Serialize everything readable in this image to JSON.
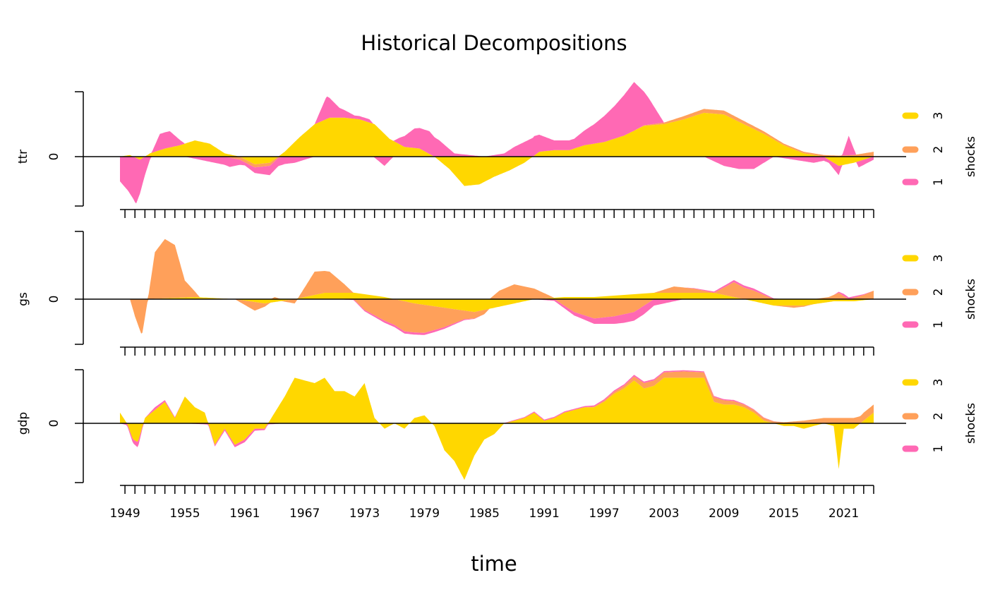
{
  "chart_data": {
    "type": "area",
    "title": "Historical Decompositions",
    "xlabel": "time",
    "x_range": [
      1948.5,
      2024.0
    ],
    "x_ticks": [
      1949,
      1955,
      1961,
      1967,
      1973,
      1979,
      1985,
      1991,
      1997,
      2003,
      2009,
      2015,
      2021
    ],
    "legend": {
      "title": "shocks",
      "placement": "right",
      "entries": [
        {
          "label": "3",
          "color": "#FFD700"
        },
        {
          "label": "2",
          "color": "#FFA05A"
        },
        {
          "label": "1",
          "color": "#FF69B4"
        }
      ]
    },
    "panels": [
      {
        "name": "ttr",
        "ylabel": "ttr",
        "y_tick_label": "0",
        "ylim": [
          -1.6,
          2.0
        ],
        "series": [
          {
            "name": "3",
            "color": "#FFD700",
            "x": [
              1948.5,
              1949.5,
              1950.5,
              1951.5,
              1953,
              1954.5,
              1956,
              1957.5,
              1959,
              1960.5,
              1962,
              1963.5,
              1965,
              1966.5,
              1968,
              1969.5,
              1971,
              1972.5,
              1974,
              1975.5,
              1977,
              1978.5,
              1980,
              1981.5,
              1983,
              1984.5,
              1986,
              1987.5,
              1989,
              1990.5,
              1992,
              1993.5,
              1995,
              1997,
              1999,
              2001,
              2003,
              2005,
              2007,
              2009,
              2011,
              2013,
              2015,
              2017,
              2019,
              2020.5,
              2022,
              2024
            ],
            "y": [
              0.0,
              0.05,
              -0.1,
              0.1,
              0.25,
              0.35,
              0.5,
              0.4,
              0.1,
              0.0,
              -0.25,
              -0.2,
              0.15,
              0.6,
              1.0,
              1.2,
              1.2,
              1.15,
              1.0,
              0.55,
              0.3,
              0.25,
              0.0,
              -0.4,
              -0.95,
              -0.9,
              -0.65,
              -0.45,
              -0.2,
              0.15,
              0.2,
              0.2,
              0.35,
              0.45,
              0.65,
              0.95,
              1.0,
              1.15,
              1.35,
              1.3,
              1.0,
              0.7,
              0.35,
              0.1,
              0.0,
              -0.3,
              -0.2,
              0.0
            ]
          },
          {
            "name": "2",
            "color": "#FFA05A",
            "x": [
              1948.5,
              1953,
              1956,
              1959,
              1960.5,
              1962,
              1963.5,
              1965,
              1970,
              1975,
              1980,
              1985,
              1990,
              1995,
              2000,
              2003,
              2005,
              2007,
              2009,
              2011,
              2013,
              2015,
              2017,
              2019,
              2020.5,
              2022,
              2024
            ],
            "y": [
              0.0,
              0.0,
              0.0,
              0.0,
              -0.1,
              -0.1,
              -0.1,
              0.0,
              0.0,
              0.0,
              0.0,
              0.0,
              0.0,
              0.0,
              0.0,
              0.05,
              0.1,
              0.12,
              0.12,
              0.1,
              0.08,
              0.05,
              0.05,
              0.05,
              0.03,
              0.05,
              0.15
            ]
          },
          {
            "name": "1",
            "color": "#FF69B4",
            "x": [
              1948.5,
              1949.3,
              1950.1,
              1951.5,
              1952.5,
              1953.5,
              1955,
              1958,
              1959.5,
              1961,
              1963.5,
              1966,
              1968,
              1969.2,
              1970.5,
              1972,
              1973.5,
              1975,
              1976.5,
              1978,
              1979.5,
              1980.5,
              1982,
              1985,
              1987,
              1988,
              1990,
              1992,
              1994,
              1996,
              1998,
              2000,
              2001.5,
              2003,
              2005,
              2007,
              2009,
              2010.5,
              2012,
              2014,
              2016,
              2018,
              2019.5,
              2020.5,
              2021.5,
              2022.5,
              2024
            ],
            "y": [
              -0.8,
              -1.1,
              -1.5,
              -0.1,
              0.5,
              0.5,
              0.0,
              -0.2,
              -0.3,
              -0.1,
              -0.3,
              -0.2,
              0.0,
              0.7,
              0.3,
              0.1,
              0.1,
              -0.3,
              0.2,
              0.6,
              0.7,
              0.5,
              0.1,
              0.0,
              0.1,
              0.3,
              0.6,
              0.3,
              0.3,
              0.6,
              1.0,
              1.5,
              0.8,
              0.0,
              0.0,
              0.0,
              -0.3,
              -0.4,
              -0.4,
              0.0,
              -0.1,
              -0.2,
              -0.1,
              -0.3,
              0.6,
              -0.2,
              -0.1
            ]
          }
        ]
      },
      {
        "name": "gs",
        "ylabel": "gs",
        "y_tick_label": "0",
        "ylim": [
          -1.05,
          1.6
        ],
        "series": [
          {
            "name": "3",
            "color": "#FFD700",
            "x": [
              1948.5,
              1951,
              1953,
              1956,
              1960,
              1963,
              1966,
              1969,
              1972,
              1975,
              1978,
              1981,
              1984,
              1987,
              1990,
              1993,
              1996,
              1999,
              2002,
              2005,
              2008,
              2011,
              2014,
              2017,
              2020,
              2022,
              2024
            ],
            "y": [
              0.0,
              0.0,
              0.02,
              0.05,
              0.0,
              -0.1,
              0.0,
              0.15,
              0.15,
              0.05,
              -0.1,
              -0.2,
              -0.3,
              -0.15,
              0.0,
              0.05,
              0.05,
              0.1,
              0.15,
              0.15,
              0.15,
              0.0,
              -0.15,
              -0.15,
              -0.05,
              -0.05,
              0.0
            ]
          },
          {
            "name": "2",
            "color": "#FFA05A",
            "x": [
              1948.5,
              1949.5,
              1950,
              1950.7,
              1951.3,
              1952,
              1953,
              1954,
              1955,
              1956.5,
              1958,
              1960,
              1962,
              1964,
              1966,
              1968,
              1969.5,
              1971,
              1973,
              1975,
              1977,
              1979,
              1981,
              1983,
              1985,
              1986.5,
              1988,
              1990,
              1992,
              1994,
              1996,
              1998,
              2000,
              2002,
              2004,
              2006,
              2008,
              2010,
              2012,
              2014,
              2016,
              2018,
              2019.5,
              2020.5,
              2021.5,
              2023,
              2024
            ],
            "y": [
              0.0,
              0.0,
              -0.4,
              -0.85,
              0.0,
              1.1,
              1.4,
              1.25,
              0.4,
              0.0,
              0.0,
              0.0,
              -0.2,
              0.05,
              -0.1,
              0.55,
              0.5,
              0.2,
              -0.25,
              -0.5,
              -0.7,
              -0.65,
              -0.45,
              -0.2,
              -0.1,
              0.2,
              0.35,
              0.25,
              0.0,
              -0.3,
              -0.45,
              -0.4,
              -0.3,
              0.0,
              0.15,
              0.1,
              0.0,
              0.35,
              0.2,
              0.0,
              -0.05,
              0.0,
              0.05,
              0.15,
              0.0,
              0.1,
              0.2
            ]
          },
          {
            "name": "1",
            "color": "#FF69B4",
            "x": [
              1948.5,
              1952,
              1955,
              1960,
              1965,
              1970,
              1975,
              1980,
              1985,
              1990,
              1995,
              1997,
              1999,
              2001,
              2003,
              2005,
              2010,
              2012,
              2015,
              2020,
              2021,
              2024
            ],
            "y": [
              0.0,
              0.0,
              0.0,
              0.0,
              0.0,
              0.0,
              -0.05,
              -0.05,
              0.0,
              0.0,
              -0.1,
              -0.15,
              -0.2,
              -0.2,
              -0.1,
              0.0,
              0.05,
              0.05,
              0.0,
              0.0,
              0.05,
              0.0
            ]
          }
        ]
      },
      {
        "name": "gdp",
        "ylabel": "gdp",
        "y_tick_label": "0",
        "ylim": [
          -1.1,
          1.0
        ],
        "series": [
          {
            "name": "3",
            "color": "#FFD700",
            "x": [
              1948.5,
              1949.2,
              1949.8,
              1950.3,
              1951,
              1952,
              1953,
              1954,
              1955,
              1956,
              1957,
              1958,
              1959,
              1960,
              1961,
              1962,
              1963,
              1964,
              1965,
              1966,
              1967,
              1968,
              1969,
              1970,
              1971,
              1972,
              1973,
              1974,
              1975,
              1976,
              1977,
              1978,
              1979,
              1980,
              1981,
              1982,
              1983,
              1984,
              1985,
              1986,
              1987,
              1988,
              1989,
              1990,
              1991,
              1992,
              1993,
              1994,
              1995,
              1996,
              1997,
              1998,
              1999,
              2000,
              2001,
              2002,
              2003,
              2004,
              2005,
              2006,
              2007,
              2008,
              2009,
              2010,
              2011,
              2012,
              2013,
              2014,
              2015,
              2016,
              2017,
              2018,
              2019,
              2020,
              2020.5,
              2021,
              2022,
              2023,
              2024
            ],
            "y": [
              0.2,
              0.0,
              -0.3,
              -0.35,
              0.1,
              0.25,
              0.4,
              0.1,
              0.5,
              0.3,
              0.2,
              -0.4,
              -0.1,
              -0.4,
              -0.3,
              -0.1,
              -0.1,
              0.2,
              0.5,
              0.85,
              0.8,
              0.75,
              0.85,
              0.6,
              0.6,
              0.5,
              0.75,
              0.1,
              -0.1,
              0.0,
              -0.1,
              0.1,
              0.15,
              -0.05,
              -0.5,
              -0.7,
              -1.05,
              -0.6,
              -0.3,
              -0.2,
              0.0,
              0.05,
              0.1,
              0.2,
              0.05,
              0.1,
              0.2,
              0.25,
              0.3,
              0.3,
              0.4,
              0.55,
              0.65,
              0.8,
              0.65,
              0.7,
              0.85,
              0.85,
              0.85,
              0.85,
              0.85,
              0.4,
              0.35,
              0.35,
              0.3,
              0.2,
              0.05,
              0.0,
              -0.05,
              -0.05,
              -0.1,
              -0.05,
              0.0,
              -0.05,
              -0.85,
              -0.1,
              -0.1,
              0.05,
              0.2
            ]
          },
          {
            "name": "2",
            "color": "#FFA05A",
            "x": [
              1948.5,
              1955,
              1965,
              1975,
              1985,
              1995,
              1999,
              2001,
              2003,
              2005,
              2007,
              2009,
              2011,
              2013,
              2015,
              2017,
              2019,
              2021,
              2022,
              2023,
              2024
            ],
            "y": [
              0.0,
              0.0,
              0.0,
              0.0,
              0.0,
              0.0,
              0.05,
              0.1,
              0.1,
              0.12,
              0.1,
              0.08,
              0.05,
              0.05,
              0.02,
              0.05,
              0.1,
              0.1,
              0.1,
              0.15,
              0.15
            ]
          },
          {
            "name": "1",
            "color": "#FF69B4",
            "x": [
              1948.5,
              1949.5,
              1950.3,
              1951,
              1952,
              1955,
              1958,
              1961,
              1965,
              1975,
              1980,
              1985,
              1990,
              1995,
              2000,
              2005,
              2010,
              2015,
              2020,
              2024
            ],
            "y": [
              0.0,
              -0.05,
              -0.1,
              0.0,
              0.05,
              0.0,
              -0.03,
              -0.05,
              0.0,
              0.0,
              0.0,
              0.0,
              0.02,
              0.02,
              0.03,
              0.02,
              0.02,
              0.0,
              0.0,
              0.0
            ]
          }
        ]
      }
    ]
  }
}
